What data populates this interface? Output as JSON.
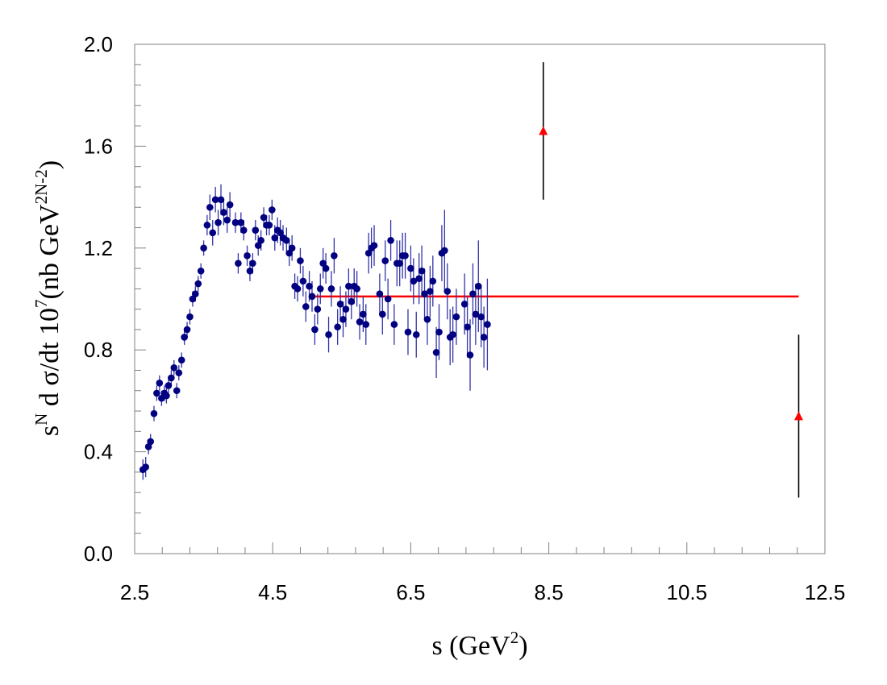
{
  "chart_data": {
    "type": "scatter",
    "title": "",
    "xlabel": {
      "main": "s (GeV",
      "sup": "2",
      "close": ")"
    },
    "ylabel": {
      "s": "s",
      "sup_n": "N",
      "mid": " d σ/dt 10",
      "sup_7": "7",
      "open": "(nb GeV",
      "sup_pow": "2N-2",
      "close": ")"
    },
    "xlim": [
      2.5,
      12.5
    ],
    "ylim": [
      0.0,
      2.0
    ],
    "xticks": [
      2.5,
      4.5,
      6.5,
      8.5,
      10.5,
      12.5
    ],
    "xtick_labels": [
      "2.5",
      "4.5",
      "6.5",
      "8.5",
      "10.5",
      "12.5"
    ],
    "yticks": [
      0.0,
      0.4,
      0.8,
      1.2,
      1.6,
      2.0
    ],
    "ytick_labels": [
      "0.0",
      "0.4",
      "0.8",
      "1.2",
      "1.6",
      "2.0"
    ],
    "grid": false,
    "colors": {
      "series_points": "#000080",
      "series_errors": "#3333aa",
      "fit_line": "#ff0000",
      "triangles": "#ff0000",
      "triangle_errors": "#000000"
    },
    "fit_line": {
      "x": [
        5.02,
        12.12
      ],
      "y": [
        1.01,
        1.01
      ]
    },
    "series": [
      {
        "marker": "circle",
        "points": [
          [
            2.62,
            0.33,
            0.04
          ],
          [
            2.66,
            0.34,
            0.04
          ],
          [
            2.7,
            0.42,
            0.03
          ],
          [
            2.73,
            0.44,
            0.03
          ],
          [
            2.78,
            0.55,
            0.03
          ],
          [
            2.82,
            0.63,
            0.03
          ],
          [
            2.86,
            0.67,
            0.03
          ],
          [
            2.89,
            0.61,
            0.03
          ],
          [
            2.93,
            0.63,
            0.03
          ],
          [
            2.96,
            0.62,
            0.03
          ],
          [
            2.99,
            0.66,
            0.03
          ],
          [
            3.03,
            0.69,
            0.03
          ],
          [
            3.07,
            0.73,
            0.03
          ],
          [
            3.11,
            0.64,
            0.03
          ],
          [
            3.14,
            0.71,
            0.03
          ],
          [
            3.18,
            0.76,
            0.03
          ],
          [
            3.22,
            0.85,
            0.03
          ],
          [
            3.26,
            0.88,
            0.03
          ],
          [
            3.3,
            0.93,
            0.03
          ],
          [
            3.34,
            1.0,
            0.03
          ],
          [
            3.38,
            1.02,
            0.03
          ],
          [
            3.42,
            1.06,
            0.03
          ],
          [
            3.46,
            1.11,
            0.03
          ],
          [
            3.5,
            1.2,
            0.03
          ],
          [
            3.55,
            1.29,
            0.04
          ],
          [
            3.59,
            1.36,
            0.05
          ],
          [
            3.63,
            1.26,
            0.05
          ],
          [
            3.67,
            1.39,
            0.05
          ],
          [
            3.71,
            1.3,
            0.05
          ],
          [
            3.75,
            1.39,
            0.06
          ],
          [
            3.79,
            1.34,
            0.05
          ],
          [
            3.84,
            1.31,
            0.05
          ],
          [
            3.88,
            1.37,
            0.05
          ],
          [
            3.96,
            1.3,
            0.04
          ],
          [
            4.0,
            1.14,
            0.04
          ],
          [
            4.04,
            1.3,
            0.04
          ],
          [
            4.08,
            1.27,
            0.04
          ],
          [
            4.13,
            1.17,
            0.04
          ],
          [
            4.17,
            1.11,
            0.04
          ],
          [
            4.21,
            1.14,
            0.04
          ],
          [
            4.25,
            1.27,
            0.04
          ],
          [
            4.29,
            1.21,
            0.04
          ],
          [
            4.33,
            1.23,
            0.04
          ],
          [
            4.37,
            1.32,
            0.04
          ],
          [
            4.41,
            1.29,
            0.04
          ],
          [
            4.45,
            1.29,
            0.04
          ],
          [
            4.49,
            1.35,
            0.04
          ],
          [
            4.53,
            1.24,
            0.05
          ],
          [
            4.57,
            1.27,
            0.05
          ],
          [
            4.61,
            1.26,
            0.05
          ],
          [
            4.65,
            1.24,
            0.05
          ],
          [
            4.7,
            1.23,
            0.05
          ],
          [
            4.74,
            1.18,
            0.05
          ],
          [
            4.78,
            1.2,
            0.05
          ],
          [
            4.82,
            1.05,
            0.05
          ],
          [
            4.86,
            1.04,
            0.05
          ],
          [
            4.9,
            1.15,
            0.05
          ],
          [
            4.94,
            1.07,
            0.06
          ],
          [
            4.98,
            0.97,
            0.06
          ],
          [
            5.03,
            1.05,
            0.06
          ],
          [
            5.07,
            1.01,
            0.06
          ],
          [
            5.11,
            0.88,
            0.06
          ],
          [
            5.15,
            0.96,
            0.06
          ],
          [
            5.19,
            1.04,
            0.06
          ],
          [
            5.23,
            1.14,
            0.06
          ],
          [
            5.27,
            1.12,
            0.06
          ],
          [
            5.31,
            0.86,
            0.07
          ],
          [
            5.35,
            1.04,
            0.07
          ],
          [
            5.39,
            1.17,
            0.07
          ],
          [
            5.44,
            0.89,
            0.07
          ],
          [
            5.48,
            0.98,
            0.07
          ],
          [
            5.52,
            0.92,
            0.07
          ],
          [
            5.56,
            0.96,
            0.07
          ],
          [
            5.6,
            1.05,
            0.07
          ],
          [
            5.64,
            0.99,
            0.07
          ],
          [
            5.68,
            1.05,
            0.07
          ],
          [
            5.72,
            1.04,
            0.07
          ],
          [
            5.76,
            0.91,
            0.07
          ],
          [
            5.81,
            0.94,
            0.07
          ],
          [
            5.85,
            0.9,
            0.08
          ],
          [
            5.89,
            1.18,
            0.08
          ],
          [
            5.93,
            1.2,
            0.08
          ],
          [
            5.97,
            1.21,
            0.08
          ],
          [
            6.05,
            1.02,
            0.08
          ],
          [
            6.09,
            0.94,
            0.08
          ],
          [
            6.13,
            1.15,
            0.08
          ],
          [
            6.17,
            1.0,
            0.08
          ],
          [
            6.21,
            1.23,
            0.08
          ],
          [
            6.26,
            0.9,
            0.08
          ],
          [
            6.3,
            1.14,
            0.09
          ],
          [
            6.34,
            1.14,
            0.09
          ],
          [
            6.38,
            1.17,
            0.09
          ],
          [
            6.42,
            1.17,
            0.09
          ],
          [
            6.46,
            0.87,
            0.09
          ],
          [
            6.5,
            1.12,
            0.09
          ],
          [
            6.54,
            1.07,
            0.09
          ],
          [
            6.58,
            0.86,
            0.09
          ],
          [
            6.62,
            1.08,
            0.1
          ],
          [
            6.66,
            1.11,
            0.1
          ],
          [
            6.7,
            1.02,
            0.1
          ],
          [
            6.74,
            0.92,
            0.1
          ],
          [
            6.78,
            1.03,
            0.1
          ],
          [
            6.82,
            1.07,
            0.1
          ],
          [
            6.87,
            0.79,
            0.1
          ],
          [
            6.91,
            0.87,
            0.11
          ],
          [
            6.95,
            1.18,
            0.11
          ],
          [
            6.99,
            1.19,
            0.16
          ],
          [
            7.03,
            1.03,
            0.11
          ],
          [
            7.07,
            0.85,
            0.11
          ],
          [
            7.11,
            0.86,
            0.11
          ],
          [
            7.16,
            0.93,
            0.11
          ],
          [
            7.28,
            0.98,
            0.12
          ],
          [
            7.32,
            0.89,
            0.12
          ],
          [
            7.36,
            0.78,
            0.14
          ],
          [
            7.4,
            1.02,
            0.12
          ],
          [
            7.44,
            0.94,
            0.12
          ],
          [
            7.48,
            1.05,
            0.18
          ],
          [
            7.52,
            0.93,
            0.12
          ],
          [
            7.56,
            0.85,
            0.12
          ],
          [
            7.61,
            0.9,
            0.18
          ]
        ]
      },
      {
        "marker": "triangle",
        "points": [
          [
            8.42,
            1.66,
            0.27
          ],
          [
            12.12,
            0.54,
            0.32
          ]
        ]
      }
    ]
  }
}
